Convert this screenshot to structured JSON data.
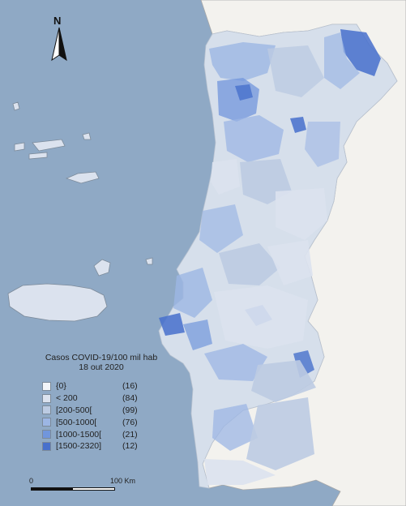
{
  "legend": {
    "title_line1": "Casos COVID-19/100 mil hab",
    "title_line2": "18 out 2020",
    "items": [
      {
        "label": "{0}",
        "count": "(16)",
        "color": "#f2f4f8"
      },
      {
        "label": "< 200",
        "count": "(84)",
        "color": "#dbe2ee"
      },
      {
        "label": "[200-500[",
        "count": "(99)",
        "color": "#bccbe2"
      },
      {
        "label": "[500-1000[",
        "count": "(76)",
        "color": "#9cb6e4"
      },
      {
        "label": "[1000-1500[",
        "count": "(21)",
        "color": "#7196dc"
      },
      {
        "label": "[1500-2320]",
        "count": "(12)",
        "color": "#4770cc"
      }
    ]
  },
  "scale": {
    "label_start": "0",
    "label_end": "100 Km"
  },
  "north_arrow": {
    "letter": "N"
  },
  "colors": {
    "sea": "#8fa9c5",
    "spain_land": "#f3f2ee",
    "coast_line": "#9a9a9a"
  }
}
